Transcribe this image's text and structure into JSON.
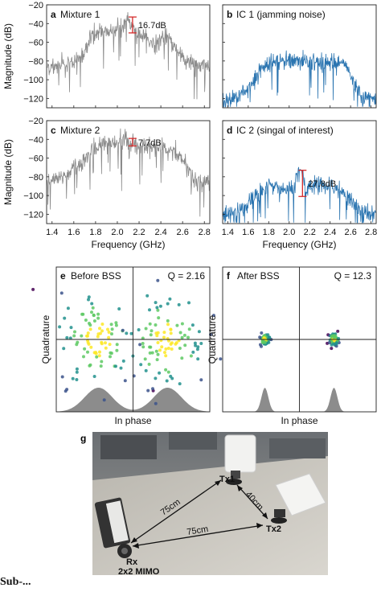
{
  "chart_data": [
    {
      "panel": "a",
      "type": "line",
      "title": "Mixture 1",
      "xlabel": "",
      "ylabel": "Magnitude (dB)",
      "xlim": [
        1.35,
        2.85
      ],
      "ylim": [
        -130,
        -20
      ],
      "yticks": [
        -20,
        -40,
        -60,
        -80,
        -100,
        -120
      ],
      "xticks": [
        1.4,
        1.6,
        1.8,
        2.0,
        2.2,
        2.4,
        2.6,
        2.8
      ],
      "color": "#8a8a8a",
      "series": [
        {
          "x": [
            1.36,
            1.4,
            1.5,
            1.6,
            1.7,
            1.75,
            1.8,
            1.9,
            2.0,
            2.05,
            2.1,
            2.12,
            2.2,
            2.3,
            2.38,
            2.42,
            2.5,
            2.6,
            2.7,
            2.84
          ],
          "y": [
            -85,
            -88,
            -84,
            -80,
            -70,
            -55,
            -50,
            -48,
            -46,
            -44,
            -34,
            -42,
            -50,
            -60,
            -62,
            -52,
            -62,
            -76,
            -84,
            -86
          ]
        }
      ],
      "annotation": {
        "label": "16.7dB",
        "x": 2.14,
        "y_top": -33,
        "y_bottom": -50
      }
    },
    {
      "panel": "b",
      "type": "line",
      "title": "IC 1 (jamming noise)",
      "xlabel": "",
      "ylabel": "",
      "xlim": [
        1.35,
        2.85
      ],
      "ylim": [
        -130,
        -20
      ],
      "xticks": [
        1.4,
        1.6,
        1.8,
        2.0,
        2.2,
        2.4,
        2.6,
        2.8
      ],
      "color": "#2a74b0",
      "series": [
        {
          "x": [
            1.36,
            1.5,
            1.6,
            1.7,
            1.8,
            2.0,
            2.2,
            2.4,
            2.55,
            2.62,
            2.7,
            2.84
          ],
          "y": [
            -121,
            -118,
            -110,
            -94,
            -82,
            -80,
            -81,
            -82,
            -85,
            -100,
            -118,
            -121
          ]
        }
      ]
    },
    {
      "panel": "c",
      "type": "line",
      "title": "Mixture 2",
      "xlabel": "Frequency (GHz)",
      "ylabel": "Magnitude (dB)",
      "xlim": [
        1.35,
        2.85
      ],
      "ylim": [
        -130,
        -20
      ],
      "yticks": [
        -20,
        -40,
        -60,
        -80,
        -100,
        -120
      ],
      "xticks": [
        1.4,
        1.6,
        1.8,
        2.0,
        2.2,
        2.4,
        2.6,
        2.8
      ],
      "xticklabels": [
        "1.4",
        "1.6",
        "1.8",
        "2.0",
        "2.2",
        "2.4",
        "2.6",
        "2.8"
      ],
      "color": "#8a8a8a",
      "series": [
        {
          "x": [
            1.36,
            1.4,
            1.5,
            1.6,
            1.7,
            1.75,
            1.8,
            1.9,
            2.0,
            2.1,
            2.15,
            2.2,
            2.3,
            2.4,
            2.5,
            2.6,
            2.7,
            2.84
          ],
          "y": [
            -88,
            -86,
            -80,
            -72,
            -62,
            -52,
            -48,
            -46,
            -46,
            -42,
            -46,
            -47,
            -48,
            -50,
            -52,
            -62,
            -82,
            -88
          ]
        }
      ],
      "annotation": {
        "label": "7.7dB",
        "x": 2.14,
        "y_top": -39,
        "y_bottom": -47
      }
    },
    {
      "panel": "d",
      "type": "line",
      "title": "IC 2 (singal of interest)",
      "xlabel": "Frequency (GHz)",
      "ylabel": "",
      "xlim": [
        1.35,
        2.85
      ],
      "ylim": [
        -130,
        -20
      ],
      "xticks": [
        1.4,
        1.6,
        1.8,
        2.0,
        2.2,
        2.4,
        2.6,
        2.8
      ],
      "xticklabels": [
        "1.4",
        "1.6",
        "1.8",
        "2.0",
        "2.2",
        "2.4",
        "2.6",
        "2.8"
      ],
      "color": "#2a74b0",
      "series": [
        {
          "x": [
            1.36,
            1.5,
            1.6,
            1.7,
            1.8,
            1.9,
            2.0,
            2.05,
            2.08,
            2.1,
            2.13,
            2.16,
            2.2,
            2.3,
            2.4,
            2.5,
            2.6,
            2.7,
            2.84
          ],
          "y": [
            -121,
            -116,
            -108,
            -97,
            -90,
            -92,
            -95,
            -97,
            -74,
            -72,
            -75,
            -98,
            -92,
            -88,
            -90,
            -94,
            -104,
            -118,
            -121
          ]
        }
      ],
      "annotation": {
        "label": "27.8dB",
        "x": 2.13,
        "y_top": -73,
        "y_bottom": -101
      }
    },
    {
      "panel": "e",
      "type": "scatter",
      "title": "Before BSS",
      "quality": "Q = 2.16",
      "xlabel": "In phase",
      "ylabel": "Quadrature",
      "clusters": [
        {
          "center": [
            -0.5,
            0.0
          ],
          "spread": 0.28
        },
        {
          "center": [
            0.5,
            0.0
          ],
          "spread": 0.28
        }
      ],
      "n_points_per_cluster": 95,
      "density_peaks": [
        -0.5,
        0.5
      ],
      "density_width": 0.2
    },
    {
      "panel": "f",
      "type": "scatter",
      "title": "After BSS",
      "quality": "Q = 12.3",
      "xlabel": "In phase",
      "ylabel": "Quadrature",
      "clusters": [
        {
          "center": [
            -0.5,
            0.0
          ],
          "spread": 0.035
        },
        {
          "center": [
            0.5,
            0.0
          ],
          "spread": 0.035
        }
      ],
      "n_points_per_cluster": 60,
      "density_peaks": [
        -0.5,
        0.5
      ],
      "density_width": 0.05
    }
  ],
  "photo": {
    "panel": "g",
    "labels": {
      "tx1": "Tx1",
      "tx2": "Tx2",
      "rx": "Rx",
      "mimo": "2x2 MIMO",
      "d1": "75cm",
      "d2": "40cm",
      "d3": "75cm"
    }
  },
  "caption_text": "Sub-..."
}
